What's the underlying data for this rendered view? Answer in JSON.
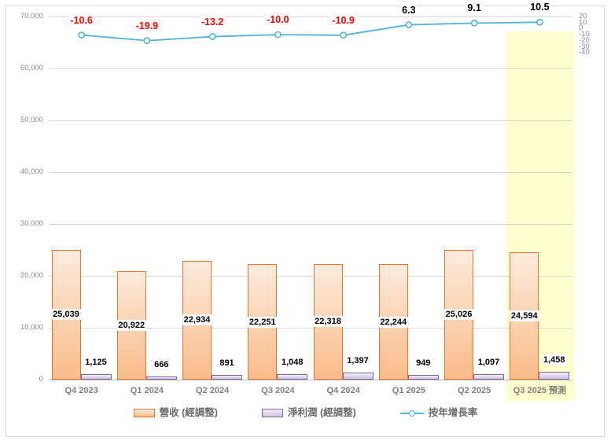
{
  "chart_data": {
    "type": "combo",
    "title": "",
    "categories": [
      "Q4 2023",
      "Q1 2024",
      "Q2 2024",
      "Q3 2024",
      "Q4 2024",
      "Q1 2025",
      "Q2 2025",
      "Q3 2025 預測"
    ],
    "series": [
      {
        "name": "營收 (經調整)",
        "type": "bar",
        "axis": "left",
        "values": [
          25039,
          20922,
          22934,
          22251,
          22318,
          22244,
          25026,
          24594
        ],
        "labels": [
          "25,039",
          "20,922",
          "22,934",
          "22,251",
          "22,318",
          "22,244",
          "25,026",
          "24,594"
        ]
      },
      {
        "name": "淨利潤 (經調整)",
        "type": "bar",
        "axis": "left",
        "values": [
          1125,
          666,
          891,
          1048,
          1397,
          949,
          1097,
          1458
        ],
        "labels": [
          "1,125",
          "666",
          "891",
          "1,048",
          "1,397",
          "949",
          "1,097",
          "1,458"
        ]
      },
      {
        "name": "按年增長率",
        "type": "line",
        "axis": "right",
        "values": [
          -10.6,
          -19.9,
          -13.2,
          -10.0,
          -10.9,
          6.3,
          9.1,
          10.5
        ],
        "labels": [
          "-10.6",
          "-19.9",
          "-13.2",
          "-10.0",
          "-10.9",
          "6.3",
          "9.1",
          "10.5"
        ]
      }
    ],
    "left_axis": {
      "min": 0,
      "max": 70000,
      "step": 10000,
      "tick_labels": [
        "0",
        "10,000",
        "20,000",
        "30,000",
        "40,000",
        "50,000",
        "60,000",
        "70,000"
      ]
    },
    "right_axis": {
      "min": -40,
      "max": 20,
      "step": 10,
      "tick_labels": [
        "20",
        "10",
        "0",
        "-10",
        "-20",
        "-30",
        "-40"
      ]
    },
    "forecast_band": {
      "category_index": 7,
      "label": "預測"
    },
    "grid": "horizontal",
    "legend_position": "bottom"
  },
  "colors": {
    "revenue_fill_top": "#FDEBDC",
    "revenue_fill_bottom": "#F9BC8A",
    "revenue_border": "#E8732A",
    "profit_fill_top": "#F2EEF6",
    "profit_fill_bottom": "#CDC3DC",
    "profit_border": "#8064A2",
    "growth_line": "#4FB4D6",
    "negative_label": "#FF0000",
    "positive_label": "#000000",
    "forecast_band": "#FFFFCE",
    "gridline": "#D9D9D9",
    "zero_line": "#BFBFBF",
    "axis_text": "#8C8C8C",
    "category_text": "#7F7F7F"
  },
  "legend": {
    "items": [
      {
        "label": "營收 (經調整)",
        "swatch": "bar-orange"
      },
      {
        "label": "淨利潤 (經調整)",
        "swatch": "bar-purple"
      },
      {
        "label": "按年增長率",
        "swatch": "line-marker"
      }
    ]
  }
}
